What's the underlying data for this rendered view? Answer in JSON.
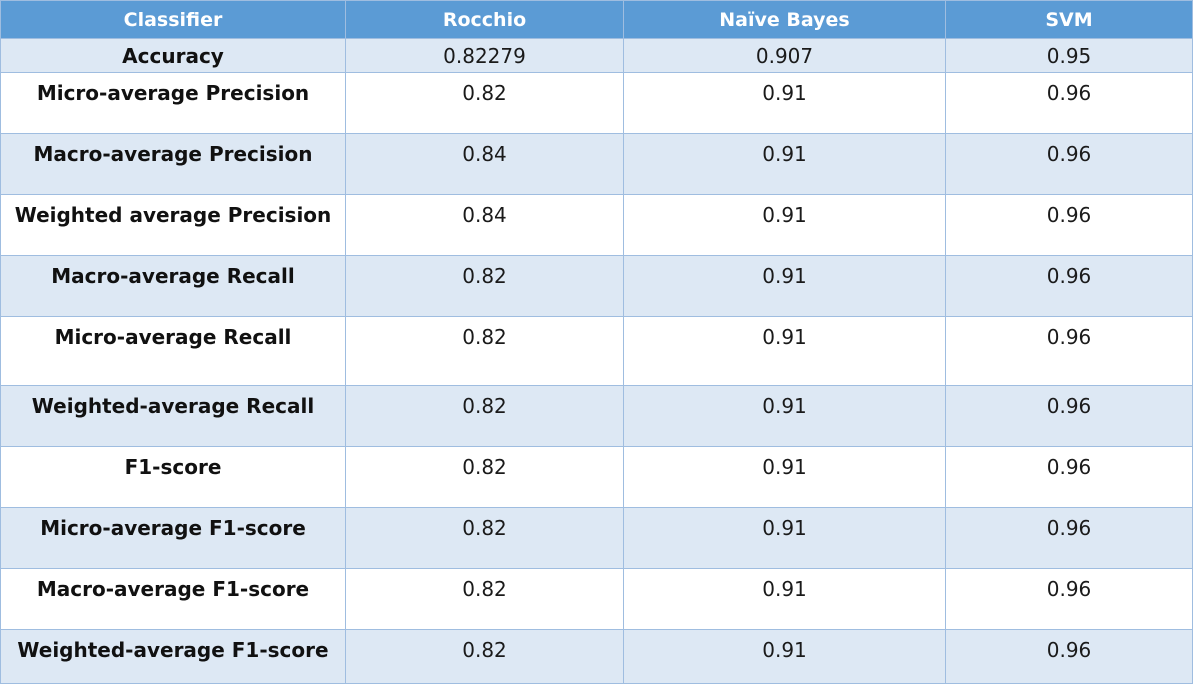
{
  "table": {
    "headers": [
      "Classifier",
      "Rocchio",
      "Naïve Bayes",
      "SVM"
    ],
    "rows": [
      {
        "metric": "Accuracy",
        "rocchio": "0.82279",
        "naive_bayes": "0.907",
        "svm": "0.95"
      },
      {
        "metric": "Micro-average Precision",
        "rocchio": "0.82",
        "naive_bayes": "0.91",
        "svm": "0.96"
      },
      {
        "metric": "Macro-average Precision",
        "rocchio": "0.84",
        "naive_bayes": "0.91",
        "svm": "0.96"
      },
      {
        "metric": "Weighted average Precision",
        "rocchio": "0.84",
        "naive_bayes": "0.91",
        "svm": "0.96"
      },
      {
        "metric": "Macro-average Recall",
        "rocchio": "0.82",
        "naive_bayes": "0.91",
        "svm": "0.96"
      },
      {
        "metric": "Micro-average Recall",
        "rocchio": "0.82",
        "naive_bayes": "0.91",
        "svm": "0.96"
      },
      {
        "metric": "Weighted-average Recall",
        "rocchio": "0.82",
        "naive_bayes": "0.91",
        "svm": "0.96"
      },
      {
        "metric": "F1-score",
        "rocchio": "0.82",
        "naive_bayes": "0.91",
        "svm": "0.96"
      },
      {
        "metric": "Micro-average F1-score",
        "rocchio": "0.82",
        "naive_bayes": "0.91",
        "svm": "0.96"
      },
      {
        "metric": "Macro-average F1-score",
        "rocchio": "0.82",
        "naive_bayes": "0.91",
        "svm": "0.96"
      },
      {
        "metric": "Weighted-average F1-score",
        "rocchio": "0.82",
        "naive_bayes": "0.91",
        "svm": "0.96"
      }
    ]
  },
  "colors": {
    "header_bg": "#5b9bd5",
    "header_text": "#ffffff",
    "band_row_bg": "#dde8f4",
    "plain_row_bg": "#ffffff",
    "border": "#9fbde0"
  }
}
